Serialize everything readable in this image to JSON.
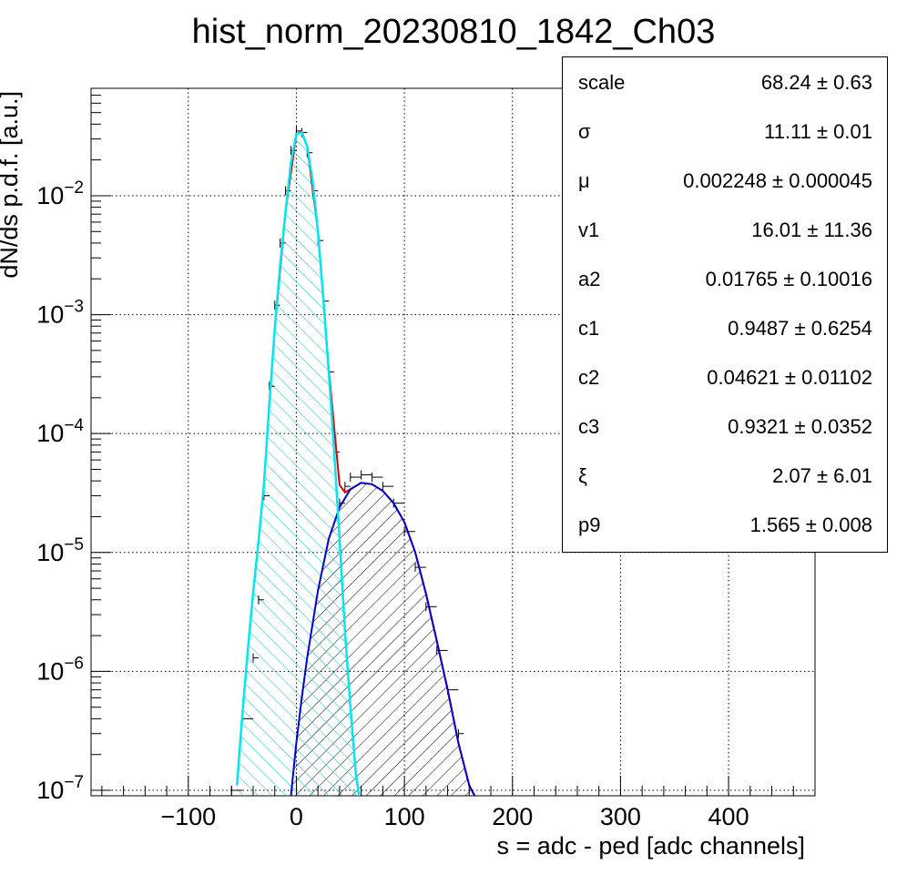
{
  "chart_data": {
    "type": "histogram",
    "title": "hist_norm_20230810_1842_Ch03",
    "xlabel": "s = adc - ped [adc channels]",
    "ylabel": "dN/ds p.d.f. [a.u.]",
    "xlim": [
      -190,
      480
    ],
    "ylim": [
      9e-08,
      0.08
    ],
    "yscale": "log",
    "grid": true,
    "x_ticks": [
      -100,
      0,
      100,
      200,
      300,
      400
    ],
    "x_tick_labels": [
      "−100",
      "0",
      "100",
      "200",
      "300",
      "400"
    ],
    "y_ticks": [
      1e-07,
      1e-06,
      1e-05,
      0.0001,
      0.001,
      0.01
    ],
    "y_tick_labels": [
      {
        "base": "10",
        "exp": "−7"
      },
      {
        "base": "10",
        "exp": "−6"
      },
      {
        "base": "10",
        "exp": "−5"
      },
      {
        "base": "10",
        "exp": "−4"
      },
      {
        "base": "10",
        "exp": "−3"
      },
      {
        "base": "10",
        "exp": "−2"
      }
    ],
    "colors": {
      "data": "#000000",
      "pedestal_fit": "#00e5ee",
      "signal_fit": "#0000cc",
      "total_fit": "#dd0000",
      "pedestal_hatch": "#33cccc",
      "signal_hatch": "#000000"
    },
    "series": [
      {
        "role": "data",
        "x": [
          -60,
          -50,
          -40,
          -35,
          -30,
          -25,
          -20,
          -15,
          -10,
          -5,
          0,
          5,
          10,
          15,
          20,
          25,
          30,
          35,
          40,
          45,
          50,
          60,
          70,
          80,
          90,
          100,
          110,
          120,
          130,
          140,
          150,
          155
        ],
        "y": [
          1e-07,
          4e-07,
          1.3e-06,
          4e-06,
          3e-05,
          0.00025,
          0.0012,
          0.004,
          0.011,
          0.024,
          0.035,
          0.034,
          0.023,
          0.011,
          0.0042,
          0.0013,
          0.00033,
          7e-05,
          2.6e-05,
          3.6e-05,
          4.3e-05,
          4.5e-05,
          4.3e-05,
          3.6e-05,
          2.6e-05,
          1.5e-05,
          7.5e-06,
          3.5e-06,
          1.5e-06,
          7e-07,
          3e-07,
          1.5e-07
        ]
      },
      {
        "role": "pedestal_fit",
        "x": [
          -55,
          -50,
          -45,
          -40,
          -35,
          -30,
          -25,
          -20,
          -15,
          -10,
          -5,
          0,
          5,
          10,
          15,
          20,
          25,
          30,
          35,
          40,
          45,
          50,
          55,
          58
        ],
        "y": [
          1.1e-07,
          4.3e-07,
          1.5e-06,
          4.6e-06,
          1.25e-05,
          3.8e-05,
          0.00018,
          0.00075,
          0.0026,
          0.0074,
          0.019,
          0.033,
          0.034,
          0.026,
          0.0135,
          0.005,
          0.00135,
          0.00033,
          7e-05,
          1.3e-05,
          2.2e-06,
          5e-07,
          1.4e-07,
          9e-08
        ]
      },
      {
        "role": "signal_fit",
        "x": [
          -5,
          0,
          5,
          10,
          20,
          30,
          40,
          50,
          60,
          70,
          80,
          90,
          100,
          110,
          120,
          130,
          140,
          150,
          160,
          165
        ],
        "y": [
          9e-08,
          2.5e-07,
          6e-07,
          1.3e-06,
          4.8e-06,
          1.3e-05,
          2.4e-05,
          3.4e-05,
          3.85e-05,
          3.75e-05,
          3.3e-05,
          2.6e-05,
          1.8e-05,
          1e-05,
          4.5e-06,
          1.8e-06,
          7e-07,
          2.5e-07,
          1.1e-07,
          9e-08
        ]
      },
      {
        "role": "total_fit",
        "x": [
          -20,
          -10,
          0,
          5,
          10,
          20,
          30,
          40,
          45,
          50,
          60,
          70,
          80,
          90,
          100,
          110,
          120,
          130,
          140,
          150,
          160,
          165
        ],
        "y": [
          0.00075,
          0.0074,
          0.033,
          0.0345,
          0.026,
          0.005,
          0.00035,
          3.7e-05,
          3.2e-05,
          3.4e-05,
          3.85e-05,
          3.75e-05,
          3.3e-05,
          2.6e-05,
          1.8e-05,
          1e-05,
          4.5e-06,
          1.8e-06,
          7e-07,
          2.5e-07,
          1.1e-07,
          9e-08
        ]
      }
    ],
    "stats": [
      {
        "name": "scale",
        "value": "68.24 ± 0.63"
      },
      {
        "name": "σ",
        "value": "11.11 ± 0.01"
      },
      {
        "name": "μ",
        "value": "0.002248 ± 0.000045"
      },
      {
        "name": "v1",
        "value": "16.01 ± 11.36"
      },
      {
        "name": "a2",
        "value": "0.01765 ± 0.10016"
      },
      {
        "name": "c1",
        "value": "0.9487 ± 0.6254"
      },
      {
        "name": "c2",
        "value": "0.04621 ± 0.01102"
      },
      {
        "name": "c3",
        "value": "0.9321 ± 0.0352"
      },
      {
        "name": "ξ",
        "value": "2.07 ± 6.01"
      },
      {
        "name": "p9",
        "value": "1.565 ± 0.008"
      }
    ]
  }
}
